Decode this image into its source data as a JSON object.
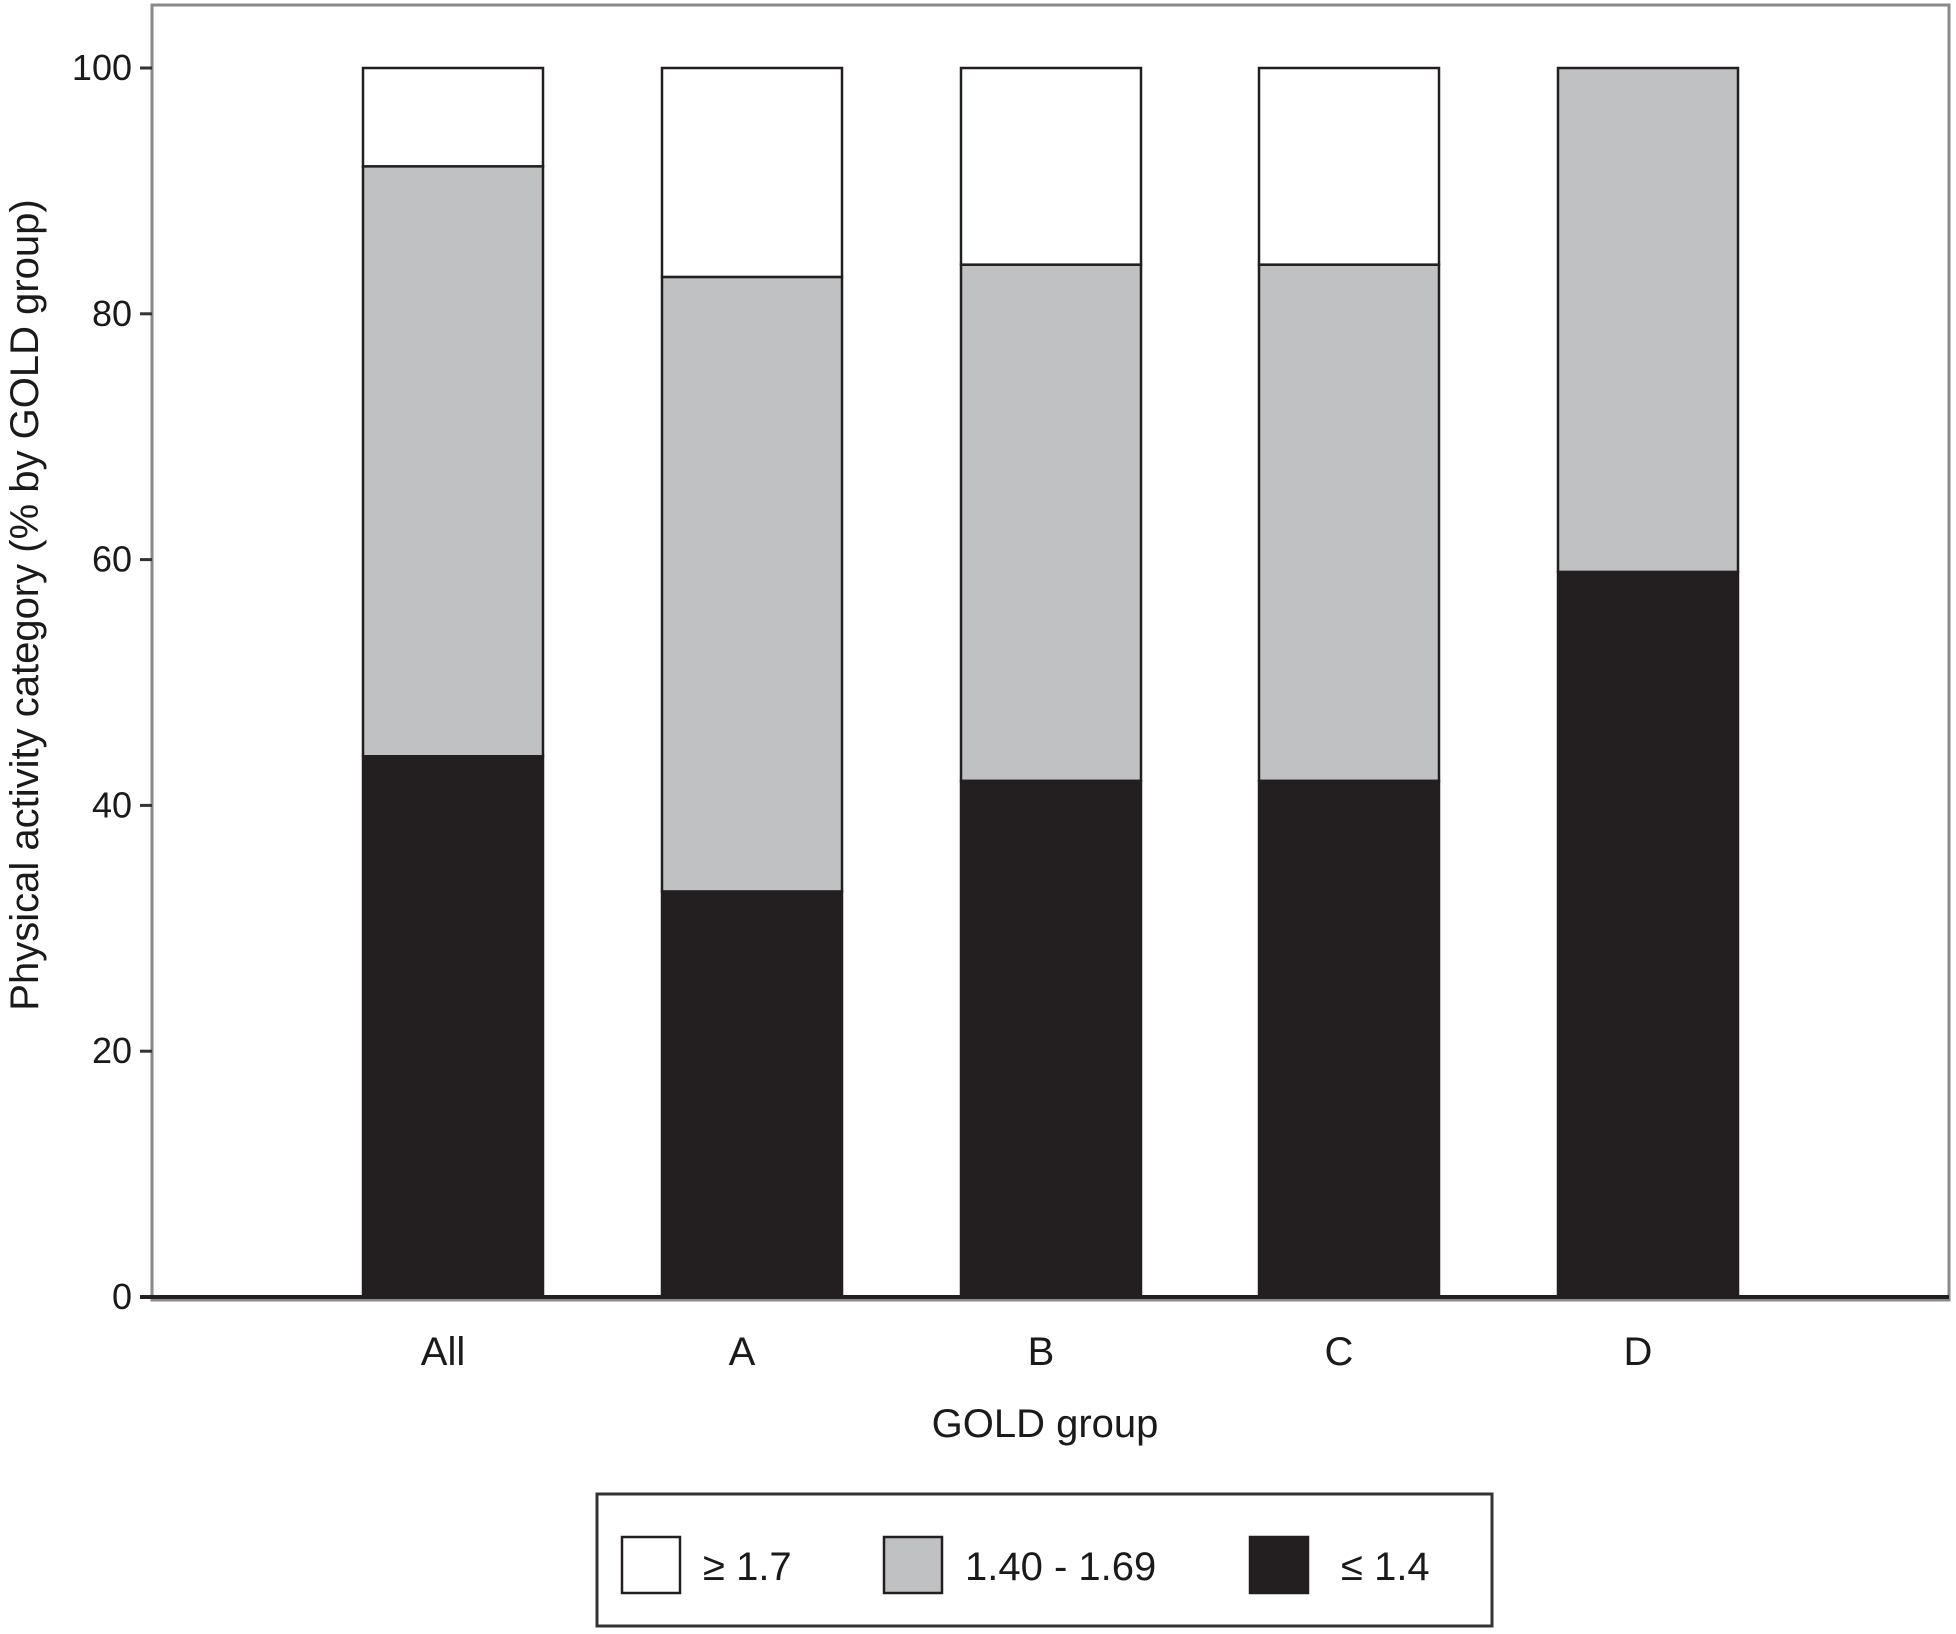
{
  "chart_data": {
    "type": "bar",
    "stacked": true,
    "xlabel": "GOLD group",
    "ylabel": "Physical activity category (% by GOLD group)",
    "ylim": [
      0,
      100
    ],
    "yticks": [
      0,
      20,
      40,
      60,
      80,
      100
    ],
    "categories": [
      "All",
      "A",
      "B",
      "C",
      "D"
    ],
    "series": [
      {
        "name": "≤ 1.4",
        "color": "#231f20",
        "values": [
          44,
          33,
          42,
          42,
          59
        ]
      },
      {
        "name": "1.40 - 1.69",
        "color": "#c0c1c3",
        "values": [
          48,
          50,
          42,
          42,
          41
        ]
      },
      {
        "name": "≥ 1.7",
        "color": "#ffffff",
        "values": [
          8,
          17,
          16,
          16,
          0
        ]
      }
    ],
    "legend": {
      "position": "bottom",
      "order": [
        "≥ 1.7",
        "1.40 - 1.69",
        "≤ 1.4"
      ]
    },
    "grid": false
  }
}
